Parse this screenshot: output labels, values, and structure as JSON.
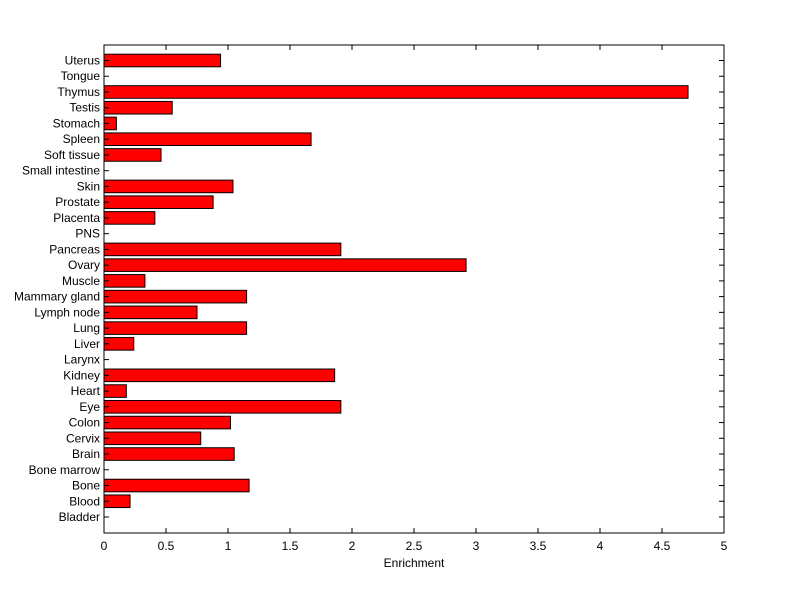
{
  "chart_data": {
    "type": "bar",
    "orientation": "horizontal",
    "title": "",
    "xlabel": "Enrichment",
    "ylabel": "",
    "xlim": [
      0,
      5
    ],
    "xticks": [
      0,
      0.5,
      1,
      1.5,
      2,
      2.5,
      3,
      3.5,
      4,
      4.5,
      5
    ],
    "grid": false,
    "bar_color": "#ff0000",
    "edge_color": "#000000",
    "categories": [
      "Bladder",
      "Blood",
      "Bone",
      "Bone marrow",
      "Brain",
      "Cervix",
      "Colon",
      "Eye",
      "Heart",
      "Kidney",
      "Larynx",
      "Liver",
      "Lung",
      "Lymph node",
      "Mammary gland",
      "Muscle",
      "Ovary",
      "Pancreas",
      "PNS",
      "Placenta",
      "Prostate",
      "Skin",
      "Small intestine",
      "Soft tissue",
      "Spleen",
      "Stomach",
      "Testis",
      "Thymus",
      "Tongue",
      "Uterus"
    ],
    "values": [
      0,
      0.21,
      1.17,
      0,
      1.05,
      0.78,
      1.02,
      1.91,
      0.18,
      1.86,
      0,
      0.24,
      1.15,
      0.75,
      1.15,
      0.33,
      2.92,
      1.91,
      0,
      0.41,
      0.88,
      1.04,
      0,
      0.46,
      1.67,
      0.1,
      0.55,
      4.71,
      0,
      0.94
    ]
  }
}
